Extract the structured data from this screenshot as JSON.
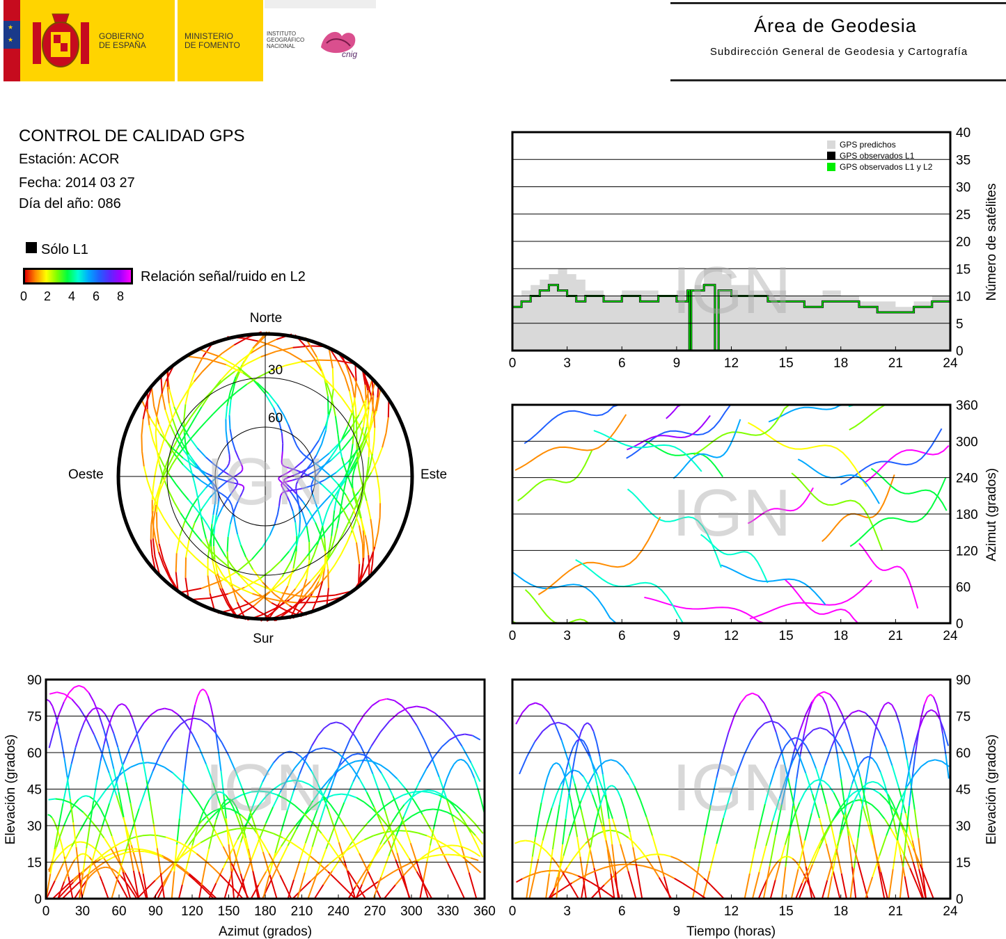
{
  "header": {
    "gov_line1": "GOBIERNO",
    "gov_line2": "DE ESPAÑA",
    "min_line1": "MINISTERIO",
    "min_line2": "DE FOMENTO",
    "ign_line1": "INSTITUTO",
    "ign_line2": "GEOGRÁFICO",
    "ign_line3": "NACIONAL",
    "cnig_logo": "cnig",
    "area_title": "Área de Geodesia",
    "area_subtitle": "Subdirección General de Geodesia y Cartografía"
  },
  "info": {
    "title": "CONTROL DE CALIDAD GPS",
    "station": "Estación: ACOR",
    "date": "Fecha: 2014 03 27",
    "doy": "Día del año: 086"
  },
  "legend": {
    "only_l1": "Sólo L1",
    "snr_label": "Relación señal/ruido en L2",
    "snr_ticks": [
      "0",
      "2",
      "4",
      "6",
      "8"
    ]
  },
  "watermark": "IGN",
  "colors": {
    "predicted": "#d9d9d9",
    "observed_l1": "#000000",
    "observed_l1_l2": "#00ee00",
    "snr_scale": [
      "#e00000",
      "#ff8c00",
      "#ffff00",
      "#80ff00",
      "#00ff40",
      "#00ffd0",
      "#00a8ff",
      "#2060ff",
      "#5a28ff",
      "#a000ff",
      "#ff00ff"
    ]
  },
  "chart_data": [
    {
      "id": "skyplot",
      "type": "scatter",
      "title": "",
      "directions": {
        "north": "Norte",
        "south": "Sur",
        "east": "Este",
        "west": "Oeste"
      },
      "ring_labels": [
        "30",
        "60"
      ],
      "note": "polar sky plot of satellite tracks (azimuth/elevation) coloured by L2 SNR"
    },
    {
      "id": "satcount",
      "type": "area",
      "ylabel": "Número de satélites",
      "xlim": [
        0,
        24
      ],
      "ylim": [
        0,
        40
      ],
      "x_ticks": [
        "0",
        "3",
        "6",
        "9",
        "12",
        "15",
        "18",
        "21",
        "24"
      ],
      "y_ticks": [
        "0",
        "5",
        "10",
        "15",
        "20",
        "25",
        "30",
        "35",
        "40"
      ],
      "grid": true,
      "legend_position": "top-right",
      "series": [
        {
          "name": "GPS predichos",
          "x": [
            0,
            0.5,
            1,
            1.5,
            2,
            2.5,
            3,
            3.5,
            4,
            5,
            6,
            7,
            8,
            9,
            10,
            10.5,
            11,
            11.5,
            12,
            13,
            14,
            15,
            16,
            17,
            18,
            19,
            20,
            21,
            22,
            23,
            24
          ],
          "values": [
            10,
            11,
            12,
            13,
            14,
            15,
            14,
            13,
            11,
            10,
            11,
            11,
            10,
            11,
            12,
            15,
            15,
            14,
            12,
            11,
            11,
            10,
            10,
            11,
            10,
            9,
            9,
            8,
            9,
            10,
            10
          ]
        },
        {
          "name": "GPS observados L1",
          "x": [
            0,
            0.5,
            1,
            1.5,
            2,
            2.5,
            3,
            3.5,
            4,
            5,
            6,
            7,
            8,
            9,
            9.6,
            9.7,
            9.8,
            10,
            10.5,
            11,
            11.1,
            11.2,
            11.3,
            11.5,
            12,
            13,
            14,
            15,
            16,
            17,
            18,
            19,
            20,
            21,
            22,
            23,
            24
          ],
          "values": [
            8,
            9,
            10,
            11,
            12,
            11,
            10,
            9,
            10,
            9,
            10,
            9,
            10,
            9,
            11,
            0,
            11,
            11,
            12,
            12,
            0,
            0,
            11,
            11,
            10,
            10,
            9,
            9,
            8,
            9,
            9,
            8,
            7,
            7,
            8,
            9,
            9
          ]
        },
        {
          "name": "GPS observados L1 y L2",
          "x": [
            0,
            0.5,
            1,
            1.5,
            2,
            2.5,
            3,
            3.5,
            4,
            5,
            6,
            7,
            8,
            9,
            9.6,
            9.7,
            9.8,
            10,
            10.5,
            11,
            11.1,
            11.2,
            11.3,
            11.5,
            12,
            13,
            14,
            15,
            16,
            17,
            18,
            19,
            20,
            21,
            22,
            23,
            24
          ],
          "values": [
            8,
            9,
            10,
            11,
            12,
            11,
            10,
            9,
            10,
            9,
            10,
            9,
            10,
            9,
            11,
            0,
            11,
            11,
            12,
            12,
            0,
            0,
            11,
            11,
            10,
            10,
            9,
            9,
            8,
            9,
            9,
            8,
            7,
            7,
            8,
            9,
            9
          ]
        }
      ]
    },
    {
      "id": "azimuth_time",
      "type": "scatter",
      "ylabel": "Azimut (grados)",
      "xlim": [
        0,
        24
      ],
      "ylim": [
        0,
        360
      ],
      "x_ticks": [
        "0",
        "3",
        "6",
        "9",
        "12",
        "15",
        "18",
        "21",
        "24"
      ],
      "y_ticks": [
        "0",
        "60",
        "120",
        "180",
        "240",
        "300",
        "360"
      ],
      "grid": true
    },
    {
      "id": "elev_azimuth",
      "type": "scatter",
      "xlabel": "Azimut (grados)",
      "ylabel": "Elevación (grados)",
      "xlim": [
        0,
        360
      ],
      "ylim": [
        0,
        90
      ],
      "x_ticks": [
        "0",
        "30",
        "60",
        "90",
        "120",
        "150",
        "180",
        "210",
        "240",
        "270",
        "300",
        "330",
        "360"
      ],
      "y_ticks": [
        "0",
        "15",
        "30",
        "45",
        "60",
        "75",
        "90"
      ],
      "grid": true
    },
    {
      "id": "elev_time",
      "type": "scatter",
      "xlabel": "Tiempo (horas)",
      "ylabel": "Elevación (grados)",
      "xlim": [
        0,
        24
      ],
      "ylim": [
        0,
        90
      ],
      "x_ticks": [
        "0",
        "3",
        "6",
        "9",
        "12",
        "15",
        "18",
        "21",
        "24"
      ],
      "y_ticks": [
        "0",
        "15",
        "30",
        "45",
        "60",
        "75",
        "90"
      ],
      "grid": true
    }
  ]
}
